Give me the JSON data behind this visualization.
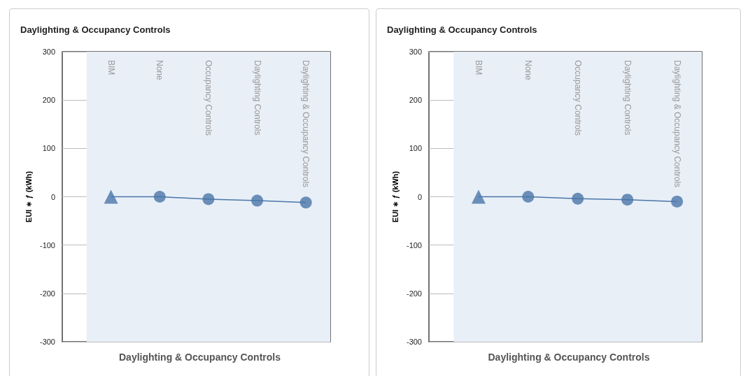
{
  "chart_data": [
    {
      "type": "line",
      "title": "Daylighting & Occupancy Controls",
      "xlabel": "Daylighting & Occupancy Controls",
      "ylabel": "EUI ∗ ƒ (kWh)",
      "categories": [
        "BIM",
        "None",
        "Occupancy Controls",
        "Daylighting Controls",
        "Daylighting & Occupancy Controls"
      ],
      "series": [
        {
          "type": "line",
          "marker": "none",
          "color": "#4a76a8",
          "values": [
            0,
            0,
            -5,
            -8,
            -12
          ]
        },
        {
          "type": "scatter",
          "marker": "triangle",
          "color": "#4a76a8",
          "values": [
            0,
            null,
            null,
            null,
            null
          ]
        },
        {
          "type": "scatter",
          "marker": "circle",
          "color": "#4a76a8",
          "values": [
            null,
            0,
            -5,
            -8,
            -12
          ]
        }
      ],
      "bands": [
        {
          "axis": "x",
          "from": "BIM",
          "to": "Daylighting & Occupancy Controls",
          "color": "#e8eff7"
        }
      ],
      "ylim": [
        -300,
        300
      ],
      "yticks": [
        -300,
        -200,
        -100,
        0,
        100,
        200,
        300
      ],
      "grid": "y"
    },
    {
      "type": "line",
      "title": "Daylighting & Occupancy Controls",
      "xlabel": "Daylighting & Occupancy Controls",
      "ylabel": "EUI ∗ ƒ (kWh)",
      "categories": [
        "BIM",
        "None",
        "Occupancy Controls",
        "Daylighting Controls",
        "Daylighting & Occupancy Controls"
      ],
      "series": [
        {
          "type": "line",
          "marker": "none",
          "color": "#4a76a8",
          "values": [
            0,
            0,
            -4,
            -6,
            -10
          ]
        },
        {
          "type": "scatter",
          "marker": "triangle",
          "color": "#4a76a8",
          "values": [
            0,
            null,
            null,
            null,
            null
          ]
        },
        {
          "type": "scatter",
          "marker": "circle",
          "color": "#4a76a8",
          "values": [
            null,
            0,
            -4,
            -6,
            -10
          ]
        }
      ],
      "bands": [
        {
          "axis": "x",
          "from": "BIM",
          "to": "Daylighting & Occupancy Controls",
          "color": "#e8eff7"
        }
      ],
      "ylim": [
        -300,
        300
      ],
      "yticks": [
        -300,
        -200,
        -100,
        0,
        100,
        200,
        300
      ],
      "grid": "y"
    }
  ]
}
